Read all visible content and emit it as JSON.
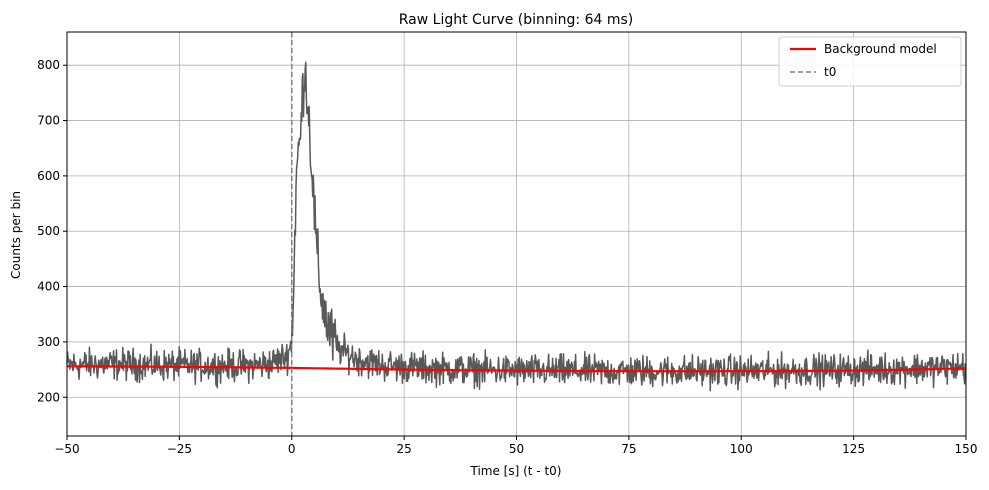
{
  "chart_data": {
    "type": "line",
    "title": "Raw Light Curve (binning: 64 ms)",
    "xlabel": "Time [s] (t - t0)",
    "ylabel": "Counts per bin",
    "xlim": [
      -50,
      150
    ],
    "ylim": [
      130,
      860
    ],
    "xticks": [
      -50,
      -25,
      0,
      25,
      50,
      75,
      100,
      125,
      150
    ],
    "xtick_labels": [
      "−50",
      "−25",
      "0",
      "25",
      "50",
      "75",
      "100",
      "125",
      "150"
    ],
    "yticks": [
      200,
      300,
      400,
      500,
      600,
      700,
      800
    ],
    "ytick_labels": [
      "200",
      "300",
      "400",
      "500",
      "600",
      "700",
      "800"
    ],
    "grid": true,
    "legend_position": "top-right",
    "series": [
      {
        "name": "Raw light curve",
        "color": "#595959",
        "baseline_description": "noisy baseline around 250-265 counts with a burst peaking near 797 at t = 2.8 s",
        "x": [
          -50,
          -40,
          -30,
          -20,
          -10,
          -5,
          -1,
          0,
          0.5,
          1,
          1.5,
          2,
          2.5,
          2.8,
          3.2,
          3.6,
          4,
          4.5,
          5,
          5.5,
          6,
          6.5,
          7,
          8,
          9,
          10,
          12,
          15,
          20,
          30,
          50,
          75,
          100,
          125,
          150
        ],
        "y": [
          258,
          260,
          258,
          257,
          257,
          260,
          275,
          300,
          420,
          600,
          640,
          680,
          760,
          797,
          780,
          730,
          680,
          610,
          540,
          470,
          420,
          390,
          365,
          330,
          305,
          290,
          280,
          268,
          258,
          252,
          248,
          247,
          247,
          250,
          254
        ]
      },
      {
        "name": "Background model",
        "color": "#ff0000",
        "x": [
          -50,
          -25,
          0,
          25,
          50,
          75,
          100,
          125,
          150
        ],
        "y": [
          256,
          255,
          253,
          250,
          248,
          247,
          247,
          248,
          252
        ]
      }
    ],
    "vlines": [
      {
        "name": "t0",
        "x": 0,
        "color": "#808080",
        "style": "dashed"
      }
    ],
    "legend": [
      {
        "label": "Background model",
        "color": "#ff0000",
        "style": "solid"
      },
      {
        "label": "t0",
        "color": "#808080",
        "style": "dashed"
      }
    ]
  }
}
